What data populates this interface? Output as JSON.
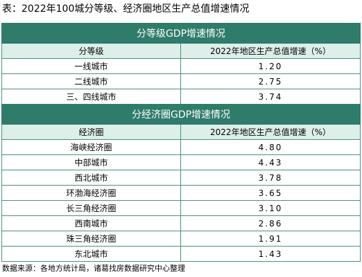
{
  "title": "表：2022年100城分等级、经济圈地区生产总值增速情况",
  "tier_table": {
    "section_title": "分等级GDP增速情况",
    "col_headers": [
      "分等级",
      "2022年地区生产总值增速（%）"
    ],
    "rows": [
      {
        "name": "一线城市",
        "value": "1.20"
      },
      {
        "name": "二线城市",
        "value": "2.75"
      },
      {
        "name": "三、四线城市",
        "value": "3.74"
      }
    ]
  },
  "region_table": {
    "section_title": "分经济圈GDP增速情况",
    "col_headers": [
      "经济圈",
      "2022年地区生产总值增速（%）"
    ],
    "rows": [
      {
        "name": "海峡经济圈",
        "value": "4.80"
      },
      {
        "name": "中部城市",
        "value": "4.43"
      },
      {
        "name": "西北城市",
        "value": "3.78"
      },
      {
        "name": "环渤海经济圈",
        "value": "3.65"
      },
      {
        "name": "长三角经济圈",
        "value": "3.10"
      },
      {
        "name": "西南城市",
        "value": "2.86"
      },
      {
        "name": "珠三角经济圈",
        "value": "1.91"
      },
      {
        "name": "东北城市",
        "value": "1.43"
      }
    ]
  },
  "source": "数据来源：各地方统计局，诸葛找房数据研究中心整理",
  "colors": {
    "section_bg": "#2f7c6a",
    "header_bg": "#dcefe9",
    "border": "#4a8f7d"
  }
}
